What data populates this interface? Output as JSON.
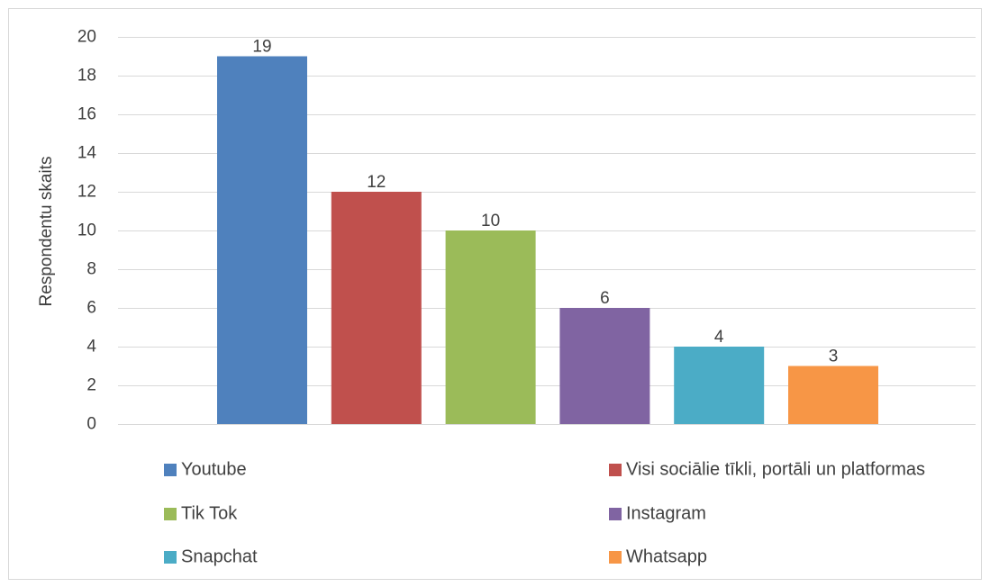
{
  "chart_data": {
    "type": "bar",
    "title": "",
    "xlabel": "",
    "ylabel": "Respondentu skaits",
    "ylim": [
      0,
      20
    ],
    "ytick_step": 2,
    "grid": true,
    "legend_position": "bottom",
    "series": [
      {
        "name": "Youtube",
        "value": 19,
        "color": "#4f81bd"
      },
      {
        "name": "Visi sociālie tīkli, portāli un platformas",
        "value": 12,
        "color": "#c0504d"
      },
      {
        "name": "Tik Tok",
        "value": 10,
        "color": "#9bbb59"
      },
      {
        "name": "Instagram",
        "value": 6,
        "color": "#8064a2"
      },
      {
        "name": "Snapchat",
        "value": 4,
        "color": "#4bacc6"
      },
      {
        "name": "Whatsapp",
        "value": 3,
        "color": "#f79646"
      }
    ]
  }
}
